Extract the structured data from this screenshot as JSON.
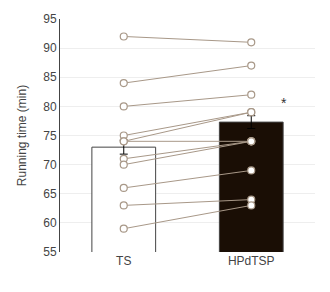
{
  "chart_data": {
    "type": "bar",
    "categories": [
      "TS",
      "HPdTSP"
    ],
    "values": [
      73.0,
      77.3
    ],
    "errors": [
      1.2,
      1.1
    ],
    "colors": [
      "white",
      "#1a0e05"
    ],
    "points": {
      "color": "#a89888",
      "values": [
        [
          92,
          84,
          80,
          75,
          74,
          74,
          71,
          70,
          66,
          63,
          59
        ],
        [
          91,
          87,
          82,
          79,
          79,
          74,
          74,
          74,
          69,
          64,
          63
        ]
      ]
    },
    "annotations": [
      {
        "text": "*",
        "x": "HPdTSP",
        "y": 80.5
      }
    ],
    "ylabel": "Running time (min)",
    "ylim": [
      55,
      95
    ],
    "yticks": [
      55,
      60,
      65,
      70,
      75,
      80,
      85,
      90,
      95
    ],
    "grid": true
  }
}
